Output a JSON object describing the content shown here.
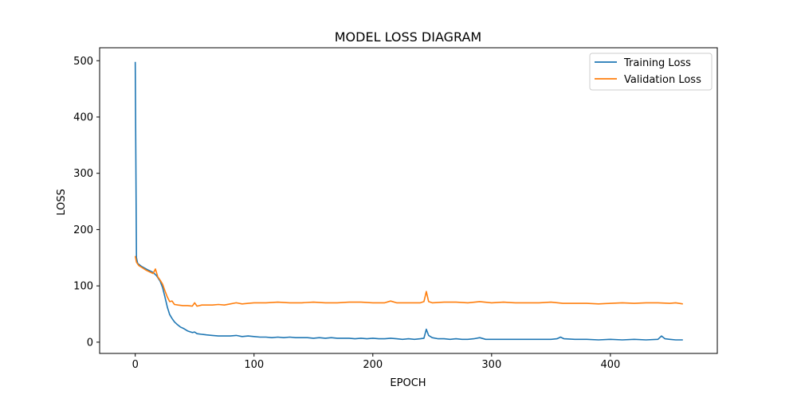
{
  "chart_data": {
    "type": "line",
    "title": "MODEL LOSS DIAGRAM",
    "xlabel": "EPOCH",
    "ylabel": "LOSS",
    "xlim": [
      -30,
      490
    ],
    "ylim": [
      -20,
      523
    ],
    "xticks": [
      0,
      100,
      200,
      300,
      400
    ],
    "yticks": [
      0,
      100,
      200,
      300,
      400,
      500
    ],
    "grid": false,
    "legend": "top-right",
    "series": [
      {
        "name": "Training Loss",
        "color": "#1f77b4",
        "points": [
          [
            0,
            498
          ],
          [
            1,
            150
          ],
          [
            2,
            140
          ],
          [
            5,
            135
          ],
          [
            10,
            129
          ],
          [
            15,
            124
          ],
          [
            18,
            118
          ],
          [
            21,
            108
          ],
          [
            23,
            97
          ],
          [
            25,
            80
          ],
          [
            27,
            62
          ],
          [
            29,
            49
          ],
          [
            31,
            42
          ],
          [
            33,
            36
          ],
          [
            35,
            32
          ],
          [
            38,
            27
          ],
          [
            41,
            24
          ],
          [
            44,
            20
          ],
          [
            48,
            17
          ],
          [
            50,
            18
          ],
          [
            52,
            15
          ],
          [
            56,
            14
          ],
          [
            60,
            13
          ],
          [
            65,
            12
          ],
          [
            70,
            11
          ],
          [
            75,
            11
          ],
          [
            80,
            11
          ],
          [
            85,
            12
          ],
          [
            90,
            10
          ],
          [
            95,
            11
          ],
          [
            100,
            10
          ],
          [
            105,
            9
          ],
          [
            110,
            9
          ],
          [
            115,
            8
          ],
          [
            120,
            9
          ],
          [
            125,
            8
          ],
          [
            130,
            9
          ],
          [
            135,
            8
          ],
          [
            140,
            8
          ],
          [
            145,
            8
          ],
          [
            150,
            7
          ],
          [
            155,
            8
          ],
          [
            160,
            7
          ],
          [
            165,
            8
          ],
          [
            170,
            7
          ],
          [
            175,
            7
          ],
          [
            180,
            7
          ],
          [
            185,
            6
          ],
          [
            190,
            7
          ],
          [
            195,
            6
          ],
          [
            200,
            7
          ],
          [
            205,
            6
          ],
          [
            210,
            6
          ],
          [
            215,
            7
          ],
          [
            220,
            6
          ],
          [
            225,
            5
          ],
          [
            230,
            6
          ],
          [
            235,
            5
          ],
          [
            240,
            6
          ],
          [
            243,
            7
          ],
          [
            245,
            23
          ],
          [
            247,
            12
          ],
          [
            250,
            8
          ],
          [
            255,
            6
          ],
          [
            260,
            6
          ],
          [
            265,
            5
          ],
          [
            270,
            6
          ],
          [
            275,
            5
          ],
          [
            280,
            5
          ],
          [
            285,
            6
          ],
          [
            290,
            8
          ],
          [
            295,
            5
          ],
          [
            300,
            5
          ],
          [
            310,
            5
          ],
          [
            320,
            5
          ],
          [
            330,
            5
          ],
          [
            340,
            5
          ],
          [
            350,
            5
          ],
          [
            355,
            6
          ],
          [
            358,
            9
          ],
          [
            361,
            6
          ],
          [
            370,
            5
          ],
          [
            380,
            5
          ],
          [
            390,
            4
          ],
          [
            400,
            5
          ],
          [
            410,
            4
          ],
          [
            420,
            5
          ],
          [
            430,
            4
          ],
          [
            440,
            5
          ],
          [
            443,
            11
          ],
          [
            446,
            6
          ],
          [
            450,
            5
          ],
          [
            455,
            4
          ],
          [
            461,
            4
          ]
        ]
      },
      {
        "name": "Validation Loss",
        "color": "#ff7f0e",
        "points": [
          [
            0,
            153
          ],
          [
            1,
            142
          ],
          [
            3,
            136
          ],
          [
            6,
            132
          ],
          [
            9,
            128
          ],
          [
            12,
            125
          ],
          [
            15,
            122
          ],
          [
            17,
            130
          ],
          [
            19,
            116
          ],
          [
            21,
            110
          ],
          [
            23,
            103
          ],
          [
            25,
            91
          ],
          [
            27,
            80
          ],
          [
            29,
            72
          ],
          [
            31,
            73
          ],
          [
            33,
            67
          ],
          [
            36,
            66
          ],
          [
            40,
            65
          ],
          [
            44,
            65
          ],
          [
            48,
            64
          ],
          [
            50,
            70
          ],
          [
            52,
            64
          ],
          [
            56,
            66
          ],
          [
            60,
            66
          ],
          [
            65,
            66
          ],
          [
            70,
            67
          ],
          [
            75,
            66
          ],
          [
            80,
            68
          ],
          [
            85,
            70
          ],
          [
            90,
            68
          ],
          [
            95,
            69
          ],
          [
            100,
            70
          ],
          [
            110,
            70
          ],
          [
            120,
            71
          ],
          [
            130,
            70
          ],
          [
            140,
            70
          ],
          [
            150,
            71
          ],
          [
            160,
            70
          ],
          [
            170,
            70
          ],
          [
            180,
            71
          ],
          [
            190,
            71
          ],
          [
            200,
            70
          ],
          [
            210,
            70
          ],
          [
            215,
            73
          ],
          [
            220,
            70
          ],
          [
            230,
            70
          ],
          [
            240,
            70
          ],
          [
            243,
            72
          ],
          [
            245,
            90
          ],
          [
            247,
            72
          ],
          [
            250,
            70
          ],
          [
            260,
            71
          ],
          [
            270,
            71
          ],
          [
            280,
            70
          ],
          [
            290,
            72
          ],
          [
            300,
            70
          ],
          [
            310,
            71
          ],
          [
            320,
            70
          ],
          [
            330,
            70
          ],
          [
            340,
            70
          ],
          [
            350,
            71
          ],
          [
            360,
            69
          ],
          [
            370,
            69
          ],
          [
            380,
            69
          ],
          [
            390,
            68
          ],
          [
            400,
            69
          ],
          [
            410,
            70
          ],
          [
            420,
            69
          ],
          [
            430,
            70
          ],
          [
            440,
            70
          ],
          [
            450,
            69
          ],
          [
            455,
            70
          ],
          [
            461,
            68
          ]
        ]
      }
    ]
  }
}
